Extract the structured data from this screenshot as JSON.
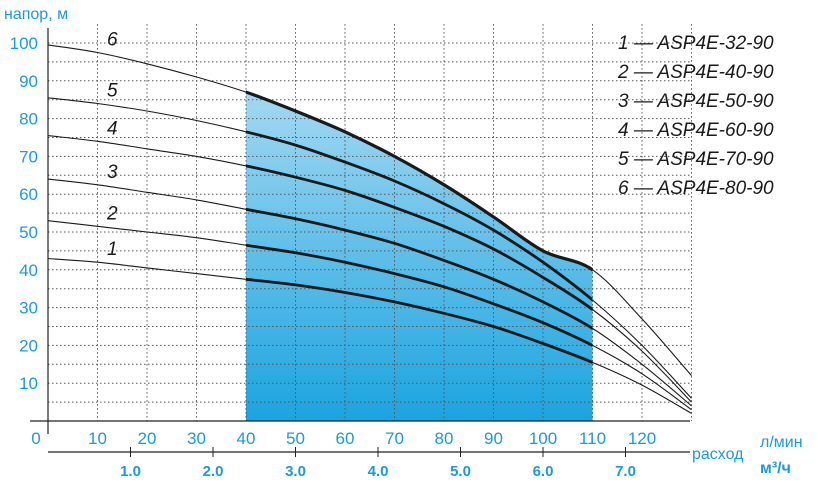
{
  "chart_data": {
    "type": "line",
    "y_axis_title": "напор, м",
    "x_axis_title_lmin": "л/мин",
    "x_axis_title_flow": "расход",
    "x_axis_title_m3h": "м³/ч",
    "x_lmin_ticks": [
      "0",
      "10",
      "20",
      "30",
      "40",
      "50",
      "60",
      "70",
      "80",
      "90",
      "100",
      "110",
      "120"
    ],
    "x_m3h_ticks": [
      "1.0",
      "2.0",
      "3.0",
      "4.0",
      "5.0",
      "6.0",
      "7.0"
    ],
    "y_ticks": [
      "10",
      "20",
      "30",
      "40",
      "50",
      "60",
      "70",
      "80",
      "90",
      "100"
    ],
    "xlim": [
      0,
      130
    ],
    "ylim": [
      0,
      105
    ],
    "grid": true,
    "working_range_lmin": [
      40,
      110
    ],
    "legend": [
      "1 — ASP4E-32-90",
      "2 — ASP4E-40-90",
      "3 — ASP4E-50-90",
      "4 — ASP4E-60-90",
      "5 — ASP4E-70-90",
      "6 — ASP4E-80-90"
    ],
    "series": [
      {
        "label": "1",
        "x": [
          0,
          10,
          20,
          30,
          40,
          50,
          60,
          70,
          80,
          90,
          100,
          110,
          120,
          130
        ],
        "y": [
          43,
          42,
          40.5,
          39,
          37.5,
          36,
          34,
          31.5,
          28.5,
          25,
          20.5,
          15.5,
          9.5,
          2
        ]
      },
      {
        "label": "2",
        "x": [
          0,
          10,
          20,
          30,
          40,
          50,
          60,
          70,
          80,
          90,
          100,
          110,
          120,
          130
        ],
        "y": [
          53,
          51.5,
          50,
          48.5,
          46.5,
          44.5,
          42,
          39,
          35.5,
          31,
          26,
          20,
          12.5,
          3
        ]
      },
      {
        "label": "3",
        "x": [
          0,
          10,
          20,
          30,
          40,
          50,
          60,
          70,
          80,
          90,
          100,
          110,
          120,
          130
        ],
        "y": [
          64,
          62.5,
          60.5,
          58.5,
          56,
          53.5,
          50.5,
          47,
          42.5,
          37.5,
          31.5,
          24.5,
          15,
          4
        ]
      },
      {
        "label": "4",
        "x": [
          0,
          10,
          20,
          30,
          40,
          50,
          60,
          70,
          80,
          90,
          100,
          110,
          120,
          130
        ],
        "y": [
          75.5,
          74,
          72,
          70,
          67.5,
          64.5,
          61,
          56.5,
          51.5,
          45.5,
          38,
          29.5,
          18.5,
          5
        ]
      },
      {
        "label": "5",
        "x": [
          0,
          10,
          20,
          30,
          40,
          50,
          60,
          70,
          80,
          90,
          100,
          110,
          120,
          130
        ],
        "y": [
          85.5,
          84,
          82,
          79.5,
          76.5,
          73,
          68.5,
          63.5,
          57.5,
          50.5,
          42,
          32,
          20,
          6
        ]
      },
      {
        "label": "6",
        "x": [
          0,
          10,
          20,
          30,
          40,
          50,
          60,
          70,
          80,
          90,
          100,
          110,
          120,
          130
        ],
        "y": [
          99.5,
          97.5,
          94.5,
          91,
          87,
          82,
          76.5,
          70,
          62.5,
          54,
          45,
          40,
          27,
          12
        ]
      }
    ],
    "colors": {
      "axis": "#1a9bd7",
      "curve": "#1a1a1a",
      "fill_top": "#bfe3f5",
      "fill_bottom": "#1aa4e0",
      "grid": "#555555"
    }
  }
}
